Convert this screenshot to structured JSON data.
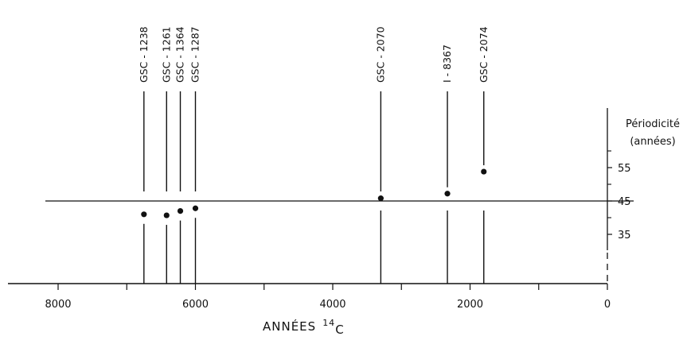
{
  "chart_data": {
    "type": "scatter",
    "xlabel": "ANNÉES",
    "xlabel_superscript": "14",
    "xlabel_suffix": "C",
    "ylabel_line1": "Périodicité",
    "ylabel_line2": "(années)",
    "x_reversed": true,
    "xlim": [
      0,
      8600
    ],
    "ylim": [
      20,
      70
    ],
    "x_ticks": [
      8000,
      6000,
      4000,
      2000,
      0
    ],
    "x_tick_labels": [
      "8000",
      "6000",
      "4000",
      "2000",
      "0"
    ],
    "x_minor_ticks": [
      7000,
      5000,
      3000,
      1000
    ],
    "y_ticks": [
      35,
      45,
      55
    ],
    "y_tick_labels": [
      "35",
      "45",
      "55"
    ],
    "reference_line": 45,
    "samples": [
      {
        "label": "GSC - 1238",
        "x": 6750,
        "y": 41
      },
      {
        "label": "GSC - 1261",
        "x": 6420,
        "y": 40.7
      },
      {
        "label": "GSC - 1364",
        "x": 6220,
        "y": 42
      },
      {
        "label": "GSC - 1287",
        "x": 6000,
        "y": 42.8
      },
      {
        "label": "GSC - 2070",
        "x": 3300,
        "y": 45.8
      },
      {
        "label": "I - 8367",
        "x": 2330,
        "y": 47.2
      },
      {
        "label": "GSC - 2074",
        "x": 1800,
        "y": 53.8
      }
    ]
  }
}
